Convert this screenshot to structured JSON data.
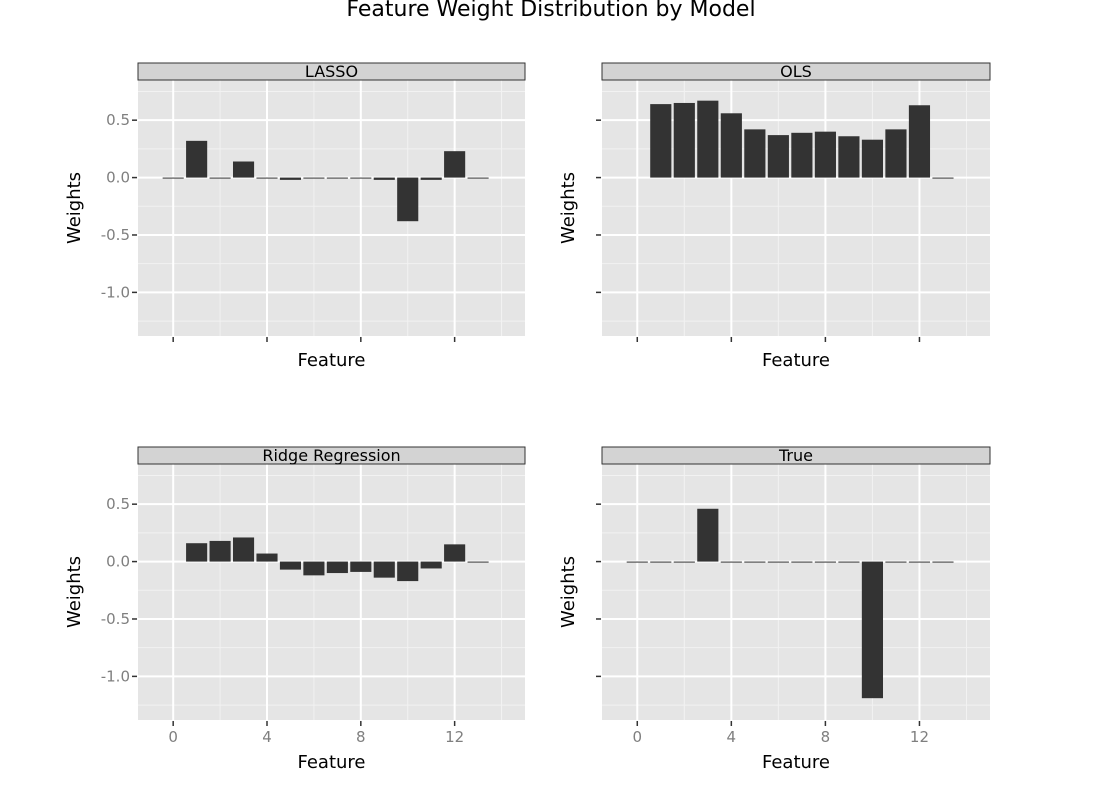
{
  "chart_data": {
    "type": "bar",
    "title": "Feature Weight Distribution by Model",
    "xlabel": "Feature",
    "ylabel": "Weights",
    "xlim": [
      -1.5,
      15
    ],
    "ylim": [
      -1.38,
      0.85
    ],
    "x_ticks": [
      0,
      4,
      8,
      12
    ],
    "y_ticks": [
      0.5,
      0.0,
      -0.5,
      -1.0
    ],
    "y_tick_labels": [
      "0.5",
      "0.0",
      "-0.5",
      "-1.0"
    ],
    "bar_width": 0.9,
    "bar_color": "#333333",
    "panel_background": "#e5e5e5",
    "strip_background": "#d3d3d3",
    "grid": true,
    "facets": [
      {
        "name": "LASSO",
        "x": [
          0,
          1,
          2,
          3,
          4,
          5,
          6,
          7,
          8,
          9,
          10,
          11,
          12,
          13
        ],
        "values": [
          0.0,
          0.32,
          0.0,
          0.14,
          0.0,
          -0.02,
          0.0,
          0.0,
          0.0,
          -0.02,
          -0.38,
          -0.02,
          0.23,
          0.0
        ]
      },
      {
        "name": "OLS",
        "x": [
          1,
          2,
          3,
          4,
          5,
          6,
          7,
          8,
          9,
          10,
          11,
          12,
          13
        ],
        "values": [
          0.64,
          0.65,
          0.67,
          0.56,
          0.42,
          0.37,
          0.39,
          0.4,
          0.36,
          0.33,
          0.42,
          0.63,
          0.0
        ]
      },
      {
        "name": "Ridge Regression",
        "x": [
          1,
          2,
          3,
          4,
          5,
          6,
          7,
          8,
          9,
          10,
          11,
          12,
          13
        ],
        "values": [
          0.16,
          0.18,
          0.21,
          0.07,
          -0.07,
          -0.12,
          -0.1,
          -0.09,
          -0.14,
          -0.17,
          -0.06,
          0.15,
          0.0
        ]
      },
      {
        "name": "True",
        "x": [
          0,
          1,
          2,
          3,
          4,
          5,
          6,
          7,
          8,
          9,
          10,
          11,
          12,
          13
        ],
        "values": [
          0.0,
          0.0,
          0.0,
          0.46,
          0.0,
          0.0,
          0.0,
          0.0,
          0.0,
          0.0,
          -1.19,
          0.0,
          0.0,
          0.0
        ]
      }
    ]
  }
}
